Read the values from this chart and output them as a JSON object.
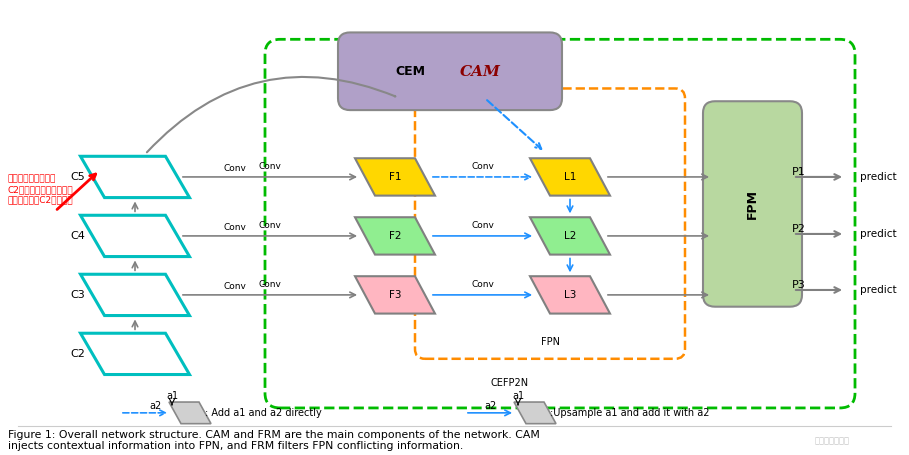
{
  "bg_color": "#ffffff",
  "title_text": "Figure 1: Overall network structure. CAM and FRM are the main components of the network. CAM\ninjects contextual information into FPN, and FRM filters FPN conflicting information.",
  "chinese_annotation": "通过一层卷积得到的\nC2因为包含的噪声太多，\n所以并没有用C2特征层。",
  "cyan_color": "#00BFBF",
  "green_dashed_color": "#00BB00",
  "orange_dashed_color": "#FF8C00",
  "cam_fill": "#B0A0C8",
  "cam_text_color": "#8B0000",
  "fpm_fill": "#B8D8A0",
  "f1_color": "#FFD700",
  "f2_color": "#90EE90",
  "f3_color": "#FFB6C1",
  "l1_color": "#FFD700",
  "l2_color": "#90EE90",
  "l3_color": "#FFB6C1",
  "gray_arrow": "#808080",
  "blue_arrow": "#1E90FF",
  "red_arrow": "#FF0000",
  "watermark": "不想学习的学渣"
}
